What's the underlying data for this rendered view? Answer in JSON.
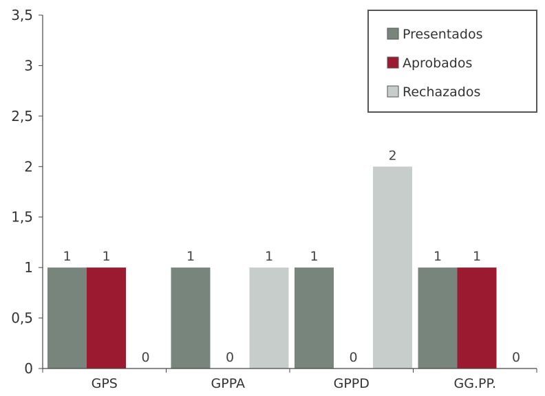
{
  "chart_data": {
    "type": "bar",
    "categories": [
      "GPS",
      "GPPA",
      "GPPD",
      "GG.PP."
    ],
    "series": [
      {
        "name": "Presentados",
        "values": [
          1,
          1,
          1,
          1
        ],
        "color": "#77857d"
      },
      {
        "name": "Aprobados",
        "values": [
          1,
          0,
          0,
          1
        ],
        "color": "#9c1a2f"
      },
      {
        "name": "Rechazados",
        "values": [
          0,
          1,
          2,
          0
        ],
        "color": "#c7cdcb"
      }
    ],
    "ylim": [
      0,
      3.5
    ],
    "yticks": [
      "0",
      "0,5",
      "1",
      "1,5",
      "2",
      "2,5",
      "3",
      "3,5"
    ],
    "grid": false,
    "legend_position": "top-right",
    "axis_color": "#444444"
  }
}
